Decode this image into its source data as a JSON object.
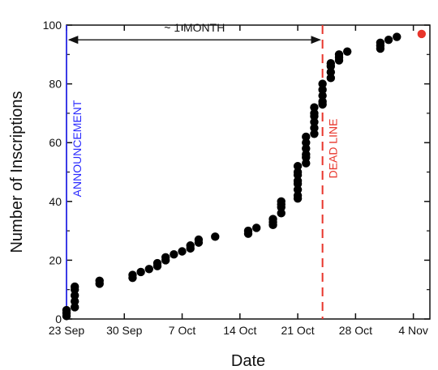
{
  "chart_data": {
    "type": "scatter",
    "title": "",
    "xlabel": "Date",
    "ylabel": "Number of Inscriptions",
    "x_unit": "day",
    "x_ticks": [
      {
        "value": "2011-09-23",
        "label": "23 Sep"
      },
      {
        "value": "2011-09-30",
        "label": "30 Sep"
      },
      {
        "value": "2011-10-07",
        "label": "7 Oct"
      },
      {
        "value": "2011-10-14",
        "label": "14 Oct"
      },
      {
        "value": "2011-10-21",
        "label": "21 Oct"
      },
      {
        "value": "2011-10-28",
        "label": "28 Oct"
      },
      {
        "value": "2011-11-04",
        "label": "4 Nov"
      }
    ],
    "xlim": [
      "2011-09-23",
      "2011-11-06"
    ],
    "ylim": [
      0,
      100
    ],
    "y_ticks": [
      0,
      20,
      40,
      60,
      80,
      100
    ],
    "grid": false,
    "series": [
      {
        "color": "#000000",
        "points": [
          [
            "2011-09-23",
            1
          ],
          [
            "2011-09-23",
            2
          ],
          [
            "2011-09-23",
            3
          ],
          [
            "2011-09-24",
            4
          ],
          [
            "2011-09-24",
            6
          ],
          [
            "2011-09-24",
            8
          ],
          [
            "2011-09-24",
            10
          ],
          [
            "2011-09-24",
            11
          ],
          [
            "2011-09-27",
            12
          ],
          [
            "2011-09-27",
            13
          ],
          [
            "2011-10-01",
            14
          ],
          [
            "2011-10-01",
            15
          ],
          [
            "2011-10-02",
            16
          ],
          [
            "2011-10-03",
            17
          ],
          [
            "2011-10-04",
            18
          ],
          [
            "2011-10-04",
            19
          ],
          [
            "2011-10-05",
            20
          ],
          [
            "2011-10-05",
            21
          ],
          [
            "2011-10-06",
            22
          ],
          [
            "2011-10-07",
            23
          ],
          [
            "2011-10-08",
            24
          ],
          [
            "2011-10-08",
            25
          ],
          [
            "2011-10-09",
            26
          ],
          [
            "2011-10-09",
            27
          ],
          [
            "2011-10-11",
            28
          ],
          [
            "2011-10-15",
            29
          ],
          [
            "2011-10-15",
            30
          ],
          [
            "2011-10-16",
            31
          ],
          [
            "2011-10-18",
            32
          ],
          [
            "2011-10-18",
            33
          ],
          [
            "2011-10-18",
            34
          ],
          [
            "2011-10-19",
            36
          ],
          [
            "2011-10-19",
            38
          ],
          [
            "2011-10-19",
            39
          ],
          [
            "2011-10-19",
            40
          ],
          [
            "2011-10-21",
            41
          ],
          [
            "2011-10-21",
            42
          ],
          [
            "2011-10-21",
            44
          ],
          [
            "2011-10-21",
            46
          ],
          [
            "2011-10-21",
            47
          ],
          [
            "2011-10-21",
            49
          ],
          [
            "2011-10-21",
            50
          ],
          [
            "2011-10-21",
            52
          ],
          [
            "2011-10-22",
            53
          ],
          [
            "2011-10-22",
            55
          ],
          [
            "2011-10-22",
            56
          ],
          [
            "2011-10-22",
            58
          ],
          [
            "2011-10-22",
            60
          ],
          [
            "2011-10-22",
            62
          ],
          [
            "2011-10-23",
            63
          ],
          [
            "2011-10-23",
            65
          ],
          [
            "2011-10-23",
            67
          ],
          [
            "2011-10-23",
            69
          ],
          [
            "2011-10-23",
            70
          ],
          [
            "2011-10-23",
            72
          ],
          [
            "2011-10-24",
            73
          ],
          [
            "2011-10-24",
            74
          ],
          [
            "2011-10-24",
            76
          ],
          [
            "2011-10-24",
            78
          ],
          [
            "2011-10-24",
            80
          ],
          [
            "2011-10-25",
            82
          ],
          [
            "2011-10-25",
            84
          ],
          [
            "2011-10-25",
            86
          ],
          [
            "2011-10-25",
            87
          ],
          [
            "2011-10-26",
            88
          ],
          [
            "2011-10-26",
            89
          ],
          [
            "2011-10-26",
            90
          ],
          [
            "2011-10-27",
            91
          ],
          [
            "2011-10-31",
            92
          ],
          [
            "2011-10-31",
            93
          ],
          [
            "2011-10-31",
            94
          ],
          [
            "2011-11-01",
            95
          ],
          [
            "2011-11-02",
            96
          ]
        ]
      },
      {
        "color": "#e8352b",
        "points": [
          [
            "2011-11-05",
            97
          ]
        ]
      }
    ],
    "annotations": {
      "announcement": {
        "date": "2011-09-23",
        "label": "ANNOUNCEMENT",
        "color": "#2a2aff",
        "style": "solid"
      },
      "deadline": {
        "date": "2011-10-24",
        "label": "DEAD LINE",
        "color": "#e8352b",
        "style": "dashed"
      },
      "interval": {
        "from": "2011-09-23",
        "to": "2011-10-24",
        "y": 95,
        "label": "~ 1 MONTH"
      }
    }
  }
}
